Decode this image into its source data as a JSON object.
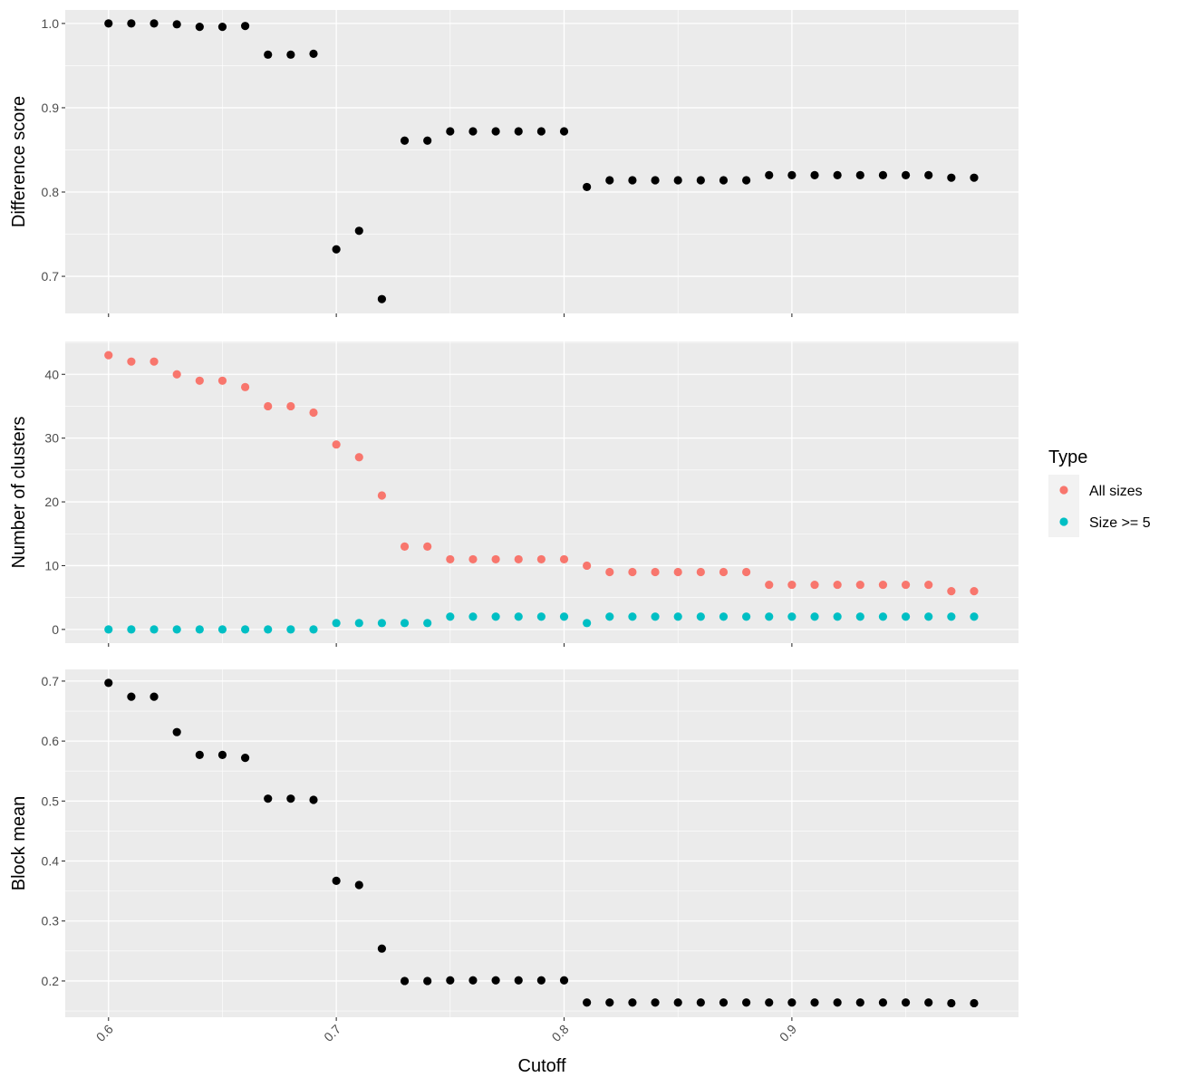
{
  "chart_data": {
    "type": "scatter",
    "xlabel": "Cutoff",
    "x_ticks": [
      0.6,
      0.7,
      0.8,
      0.9
    ],
    "x_tick_labels": [
      "0.6",
      "0.7",
      "0.8",
      "0.9"
    ],
    "xlim": [
      0.581,
      0.9995
    ],
    "grid": true,
    "background_color": "#ebebeb",
    "grid_color": "#ffffff",
    "x": [
      0.6,
      0.61,
      0.62,
      0.63,
      0.64,
      0.65,
      0.66,
      0.67,
      0.68,
      0.69,
      0.7,
      0.71,
      0.72,
      0.73,
      0.74,
      0.75,
      0.76,
      0.77,
      0.78,
      0.79,
      0.8,
      0.81,
      0.82,
      0.83,
      0.84,
      0.85,
      0.86,
      0.87,
      0.88,
      0.89,
      0.9,
      0.91,
      0.92,
      0.93,
      0.94,
      0.95,
      0.96,
      0.97,
      0.98
    ],
    "panels": [
      {
        "ylabel": "Difference score",
        "ylim": [
          0.656,
          1.016
        ],
        "y_ticks": [
          0.7,
          0.8,
          0.9,
          1.0
        ],
        "y_tick_labels": [
          "0.7",
          "0.8",
          "0.9",
          "1.0"
        ],
        "series": [
          {
            "color": "#000000",
            "values": [
              1.0,
              1.0,
              1.0,
              0.999,
              0.996,
              0.996,
              0.997,
              0.963,
              0.963,
              0.964,
              0.732,
              0.754,
              0.673,
              0.861,
              0.861,
              0.872,
              0.872,
              0.872,
              0.872,
              0.872,
              0.872,
              0.806,
              0.814,
              0.814,
              0.814,
              0.814,
              0.814,
              0.814,
              0.814,
              0.82,
              0.82,
              0.82,
              0.82,
              0.82,
              0.82,
              0.82,
              0.82,
              0.817,
              0.817
            ]
          }
        ]
      },
      {
        "ylabel": "Number of clusters",
        "ylim": [
          -2.15,
          45.15
        ],
        "y_ticks": [
          0,
          10,
          20,
          30,
          40
        ],
        "y_tick_labels": [
          "0",
          "10",
          "20",
          "30",
          "40"
        ],
        "series": [
          {
            "name": "All sizes",
            "color": "#F8766D",
            "values": [
              43,
              42,
              42,
              40,
              39,
              39,
              38,
              35,
              35,
              34,
              29,
              27,
              21,
              13,
              13,
              11,
              11,
              11,
              11,
              11,
              11,
              10,
              9,
              9,
              9,
              9,
              9,
              9,
              9,
              7,
              7,
              7,
              7,
              7,
              7,
              7,
              7,
              6,
              6
            ]
          },
          {
            "name": "Size >= 5",
            "color": "#00BFC4",
            "values": [
              0,
              0,
              0,
              0,
              0,
              0,
              0,
              0,
              0,
              0,
              1,
              1,
              1,
              1,
              1,
              2,
              2,
              2,
              2,
              2,
              2,
              1,
              2,
              2,
              2,
              2,
              2,
              2,
              2,
              2,
              2,
              2,
              2,
              2,
              2,
              2,
              2,
              2,
              2
            ]
          }
        ]
      },
      {
        "ylabel": "Block mean",
        "ylim": [
          0.1395,
          0.7195
        ],
        "y_ticks": [
          0.2,
          0.3,
          0.4,
          0.5,
          0.6,
          0.7
        ],
        "y_tick_labels": [
          "0.2",
          "0.3",
          "0.4",
          "0.5",
          "0.6",
          "0.7"
        ],
        "series": [
          {
            "color": "#000000",
            "values": [
              0.697,
              0.674,
              0.674,
              0.615,
              0.577,
              0.577,
              0.572,
              0.504,
              0.504,
              0.502,
              0.367,
              0.36,
              0.254,
              0.2,
              0.2,
              0.201,
              0.201,
              0.201,
              0.201,
              0.201,
              0.201,
              0.164,
              0.164,
              0.164,
              0.164,
              0.164,
              0.164,
              0.164,
              0.164,
              0.164,
              0.164,
              0.164,
              0.164,
              0.164,
              0.164,
              0.164,
              0.164,
              0.163,
              0.163
            ]
          }
        ]
      }
    ],
    "legend": {
      "title": "Type",
      "position": "right",
      "items": [
        {
          "label": "All sizes",
          "color": "#F8766D"
        },
        {
          "label": "Size >= 5",
          "color": "#00BFC4"
        }
      ]
    }
  }
}
